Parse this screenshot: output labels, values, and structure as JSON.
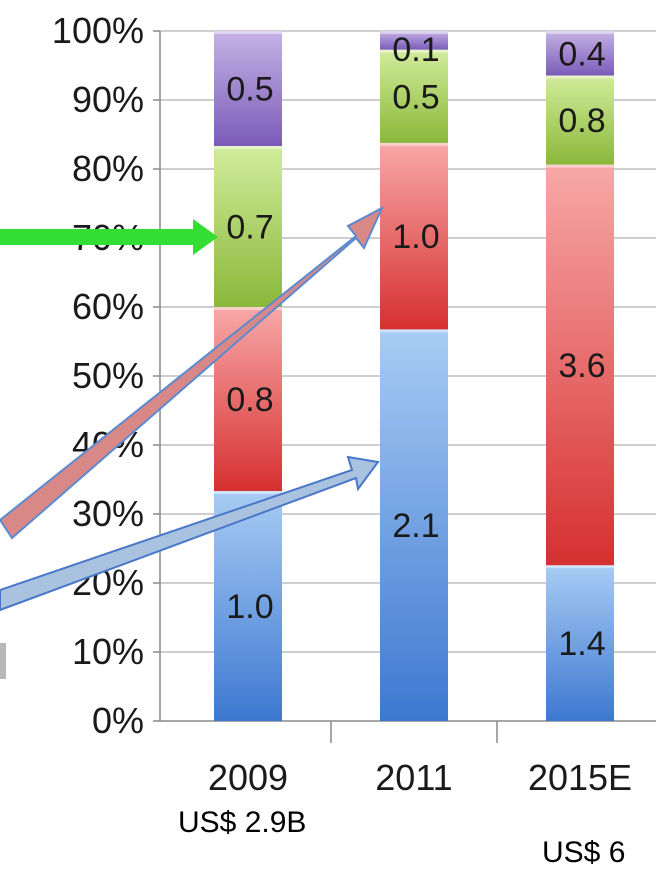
{
  "chart_data": {
    "type": "stacked_bar_100",
    "categories": [
      "2009",
      "2011",
      "2015E"
    ],
    "series": [
      {
        "color": "#5a8fd8",
        "values": [
          1.0,
          2.1,
          1.4
        ]
      },
      {
        "color": "#e04848",
        "values": [
          0.8,
          1.0,
          3.6
        ]
      },
      {
        "color": "#9cc44a",
        "values": [
          0.7,
          0.5,
          0.8
        ]
      },
      {
        "color": "#8a6cc4",
        "values": [
          0.5,
          0.1,
          0.4
        ]
      }
    ],
    "value_labels": [
      [
        "1.0",
        "2.1",
        "1.4"
      ],
      [
        "0.8",
        "1.0",
        "3.6"
      ],
      [
        "0.7",
        "0.5",
        "0.8"
      ],
      [
        "0.5",
        "0.1",
        "0.4"
      ]
    ],
    "y_ticks": [
      "0%",
      "10%",
      "20%",
      "30%",
      "40%",
      "50%",
      "60%",
      "70%",
      "80%",
      "90%",
      "100%"
    ],
    "ylim": [
      0,
      100
    ],
    "grid": true
  },
  "totals": [
    "US$ 2.9B",
    "US$ 6"
  ],
  "annotations": {
    "green_arrow_color": "#33dd33",
    "red_arrow_color": "#d98888",
    "blue_arrow_color": "#a9c2e0"
  }
}
